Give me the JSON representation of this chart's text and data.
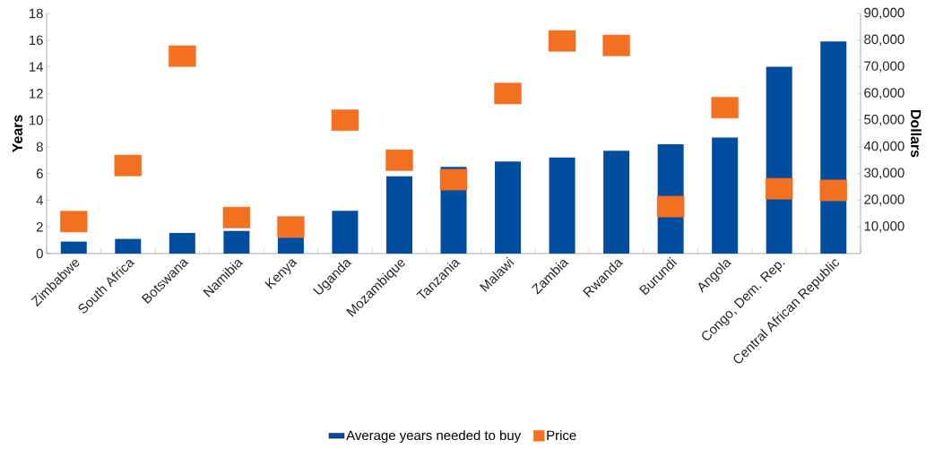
{
  "chart_data": {
    "type": "bar",
    "categories": [
      "Zimbabwe",
      "South Africa",
      "Botswana",
      "Namibia",
      "Kenya",
      "Uganda",
      "Mozambique",
      "Tanzania",
      "Malawi",
      "Zambia",
      "Rwanda",
      "Burundi",
      "Angola",
      "Congo, Dem. Rep.",
      "Central African Republic"
    ],
    "ylabel": "Years",
    "y2label": "Dollars",
    "series": [
      {
        "name": "Average years needed to buy",
        "color": "#004da0",
        "values": [
          0.9,
          1.1,
          1.55,
          1.7,
          1.2,
          3.2,
          5.8,
          6.5,
          6.9,
          7.2,
          7.7,
          8.2,
          8.7,
          14.0,
          15.9
        ]
      },
      {
        "name": "Price",
        "type": "scatter",
        "axis": "y2",
        "marker": "square",
        "color": "#f37021",
        "values": [
          12000,
          33000,
          74000,
          13500,
          10000,
          50000,
          35000,
          27700,
          60000,
          79700,
          78000,
          17600,
          54700,
          24300,
          23700
        ]
      }
    ],
    "ylim": [
      0,
      18
    ],
    "yticks": [
      0,
      2,
      4,
      6,
      8,
      10,
      12,
      14,
      16,
      18
    ],
    "y2lim": [
      0,
      90000
    ],
    "y2ticks": [
      {
        "value": 10000,
        "label": "10,000"
      },
      {
        "value": 20000,
        "label": "20,000"
      },
      {
        "value": 30000,
        "label": "30,000"
      },
      {
        "value": 40000,
        "label": "40,000"
      },
      {
        "value": 50000,
        "label": "50,000"
      },
      {
        "value": 60000,
        "label": "60,000"
      },
      {
        "value": 70000,
        "label": "70,000"
      },
      {
        "value": 80000,
        "label": "80,000"
      },
      {
        "value": 90000,
        "label": "90,000"
      }
    ],
    "legend": "bottom"
  }
}
